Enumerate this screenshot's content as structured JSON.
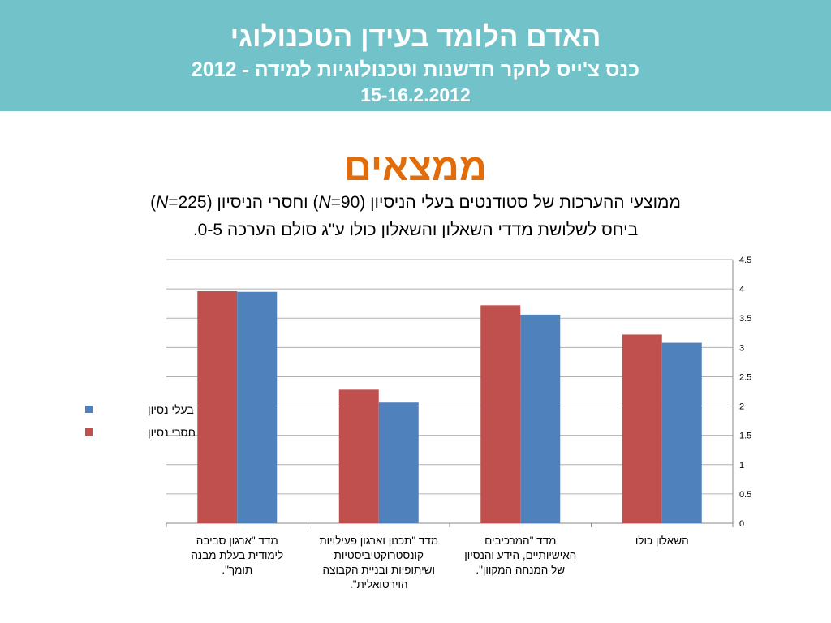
{
  "header": {
    "title": "האדם הלומד בעידן הטכנולוגי",
    "subtitle": "כנס צ'ייס לחקר חדשנות וטכנולוגיות למידה - 2012",
    "dates": "15-16.2.2012"
  },
  "slide": {
    "heading": "ממצאים",
    "desc_line1": {
      "pre": "ממוצעי ההערכות של סטודנטים בעלי הניסיון (",
      "n_symbol": "N",
      "n1": "=90",
      "mid": ") וחסרי הניסיון (",
      "n2": "=225",
      "post": ")"
    },
    "desc_line2": "ביחס לשלושת מדדי השאלון והשאלון כולו ע\"ג סולם הערכה 0-5."
  },
  "colors": {
    "header_bg": "#72c3c9",
    "heading": "#e36c0a",
    "series_red": "#c0504d",
    "series_blue": "#4f81bd",
    "grid": "#b0b0b0"
  },
  "chart_data": {
    "type": "bar",
    "categories": [
      [
        "מדד \"ארגון סביבה",
        "לימודית בעלת מבנה",
        "תומך\"."
      ],
      [
        "מדד \"תכנון וארגון פעילויות",
        "קונסטרוקטיביסטיות",
        "ושיתופיות ובניית הקבוצה",
        "הוירטואלית\"."
      ],
      [
        "מדד \"המרכיבים",
        "האישיותיים, הידע והנסיון",
        "של המנחה המקוון\"."
      ],
      [
        "השאלון כולו"
      ]
    ],
    "series": [
      {
        "name": "חסרי נסיון",
        "color": "#c0504d",
        "values": [
          3.96,
          2.28,
          3.72,
          3.22
        ]
      },
      {
        "name": "בעלי נסיון",
        "color": "#4f81bd",
        "values": [
          3.95,
          2.06,
          3.56,
          3.08
        ]
      }
    ],
    "legend_order": [
      "בעלי נסיון",
      "חסרי נסיון"
    ],
    "legend_position": "left",
    "ylim": [
      0,
      4.5
    ],
    "yticks": [
      "0",
      "0.5",
      "1",
      "1.5",
      "2",
      "2.5",
      "3",
      "3.5",
      "4",
      "4.5"
    ],
    "grid": true,
    "y_axis_side": "right"
  }
}
